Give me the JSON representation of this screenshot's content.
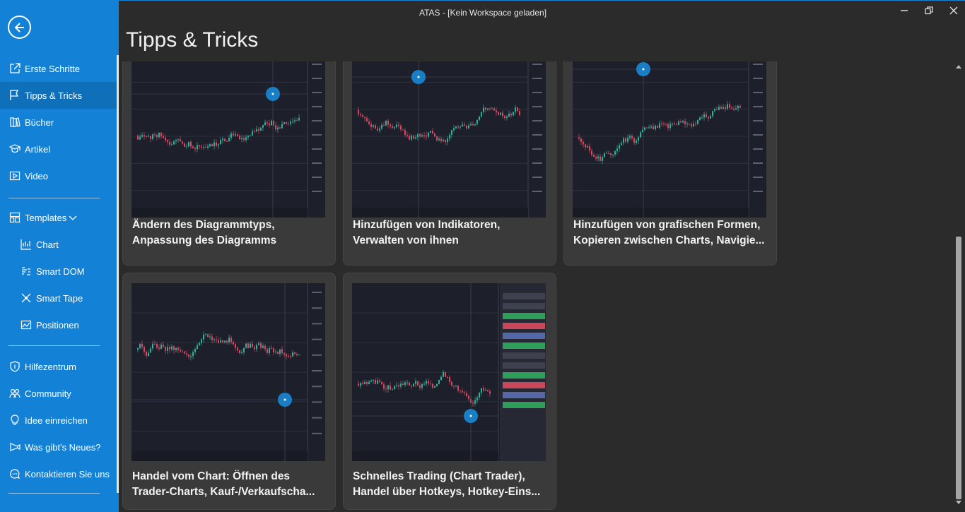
{
  "window": {
    "title": "ATAS - [Kein Workspace geladen]"
  },
  "page": {
    "title": "Tipps & Tricks"
  },
  "sidebar": {
    "items": [
      {
        "label": "Erste Schritte",
        "icon": "external-link-icon"
      },
      {
        "label": "Tipps & Tricks",
        "icon": "flag-icon",
        "active": true
      },
      {
        "label": "Bücher",
        "icon": "books-icon"
      },
      {
        "label": "Artikel",
        "icon": "graduation-cap-icon"
      },
      {
        "label": "Video",
        "icon": "video-icon"
      }
    ],
    "templates": {
      "label": "Templates",
      "icon": "templates-icon",
      "children": [
        {
          "label": "Chart",
          "icon": "chart-icon"
        },
        {
          "label": "Smart DOM",
          "icon": "smart-dom-icon"
        },
        {
          "label": "Smart Tape",
          "icon": "smart-tape-icon"
        },
        {
          "label": "Positionen",
          "icon": "positions-icon"
        }
      ]
    },
    "help_items": [
      {
        "label": "Hilfezentrum",
        "icon": "shield-icon"
      },
      {
        "label": "Community",
        "icon": "community-icon"
      },
      {
        "label": "Idee einreichen",
        "icon": "lightbulb-icon"
      },
      {
        "label": "Was gibt's Neues?",
        "icon": "megaphone-icon"
      },
      {
        "label": "Kontaktieren Sie uns",
        "icon": "chat-icon"
      }
    ]
  },
  "cards": [
    {
      "line1": "Ändern des Diagrammtyps,",
      "line2": "Anpassung des Diagramms"
    },
    {
      "line1": "Hinzufügen von Indikatoren,",
      "line2": "Verwalten von ihnen"
    },
    {
      "line1": "Hinzufügen von grafischen Formen,",
      "line2": "Kopieren zwischen Charts, Navigie..."
    },
    {
      "line1": "Handel vom Chart: Öffnen des",
      "line2": "Trader-Charts, Kauf-/Verkaufscha..."
    },
    {
      "line1": "Schnelles Trading (Chart Trader),",
      "line2": "Handel über Hotkeys, Hotkey-Eins..."
    }
  ],
  "colors": {
    "sidebar": "#1382d6",
    "background": "#2b2b2b",
    "card": "#3a3a3a",
    "chart_bg": "#1d1f2b",
    "candle_up": "#2bb39a",
    "candle_down": "#e0455f",
    "cursor_marker": "#1a7ec4"
  }
}
